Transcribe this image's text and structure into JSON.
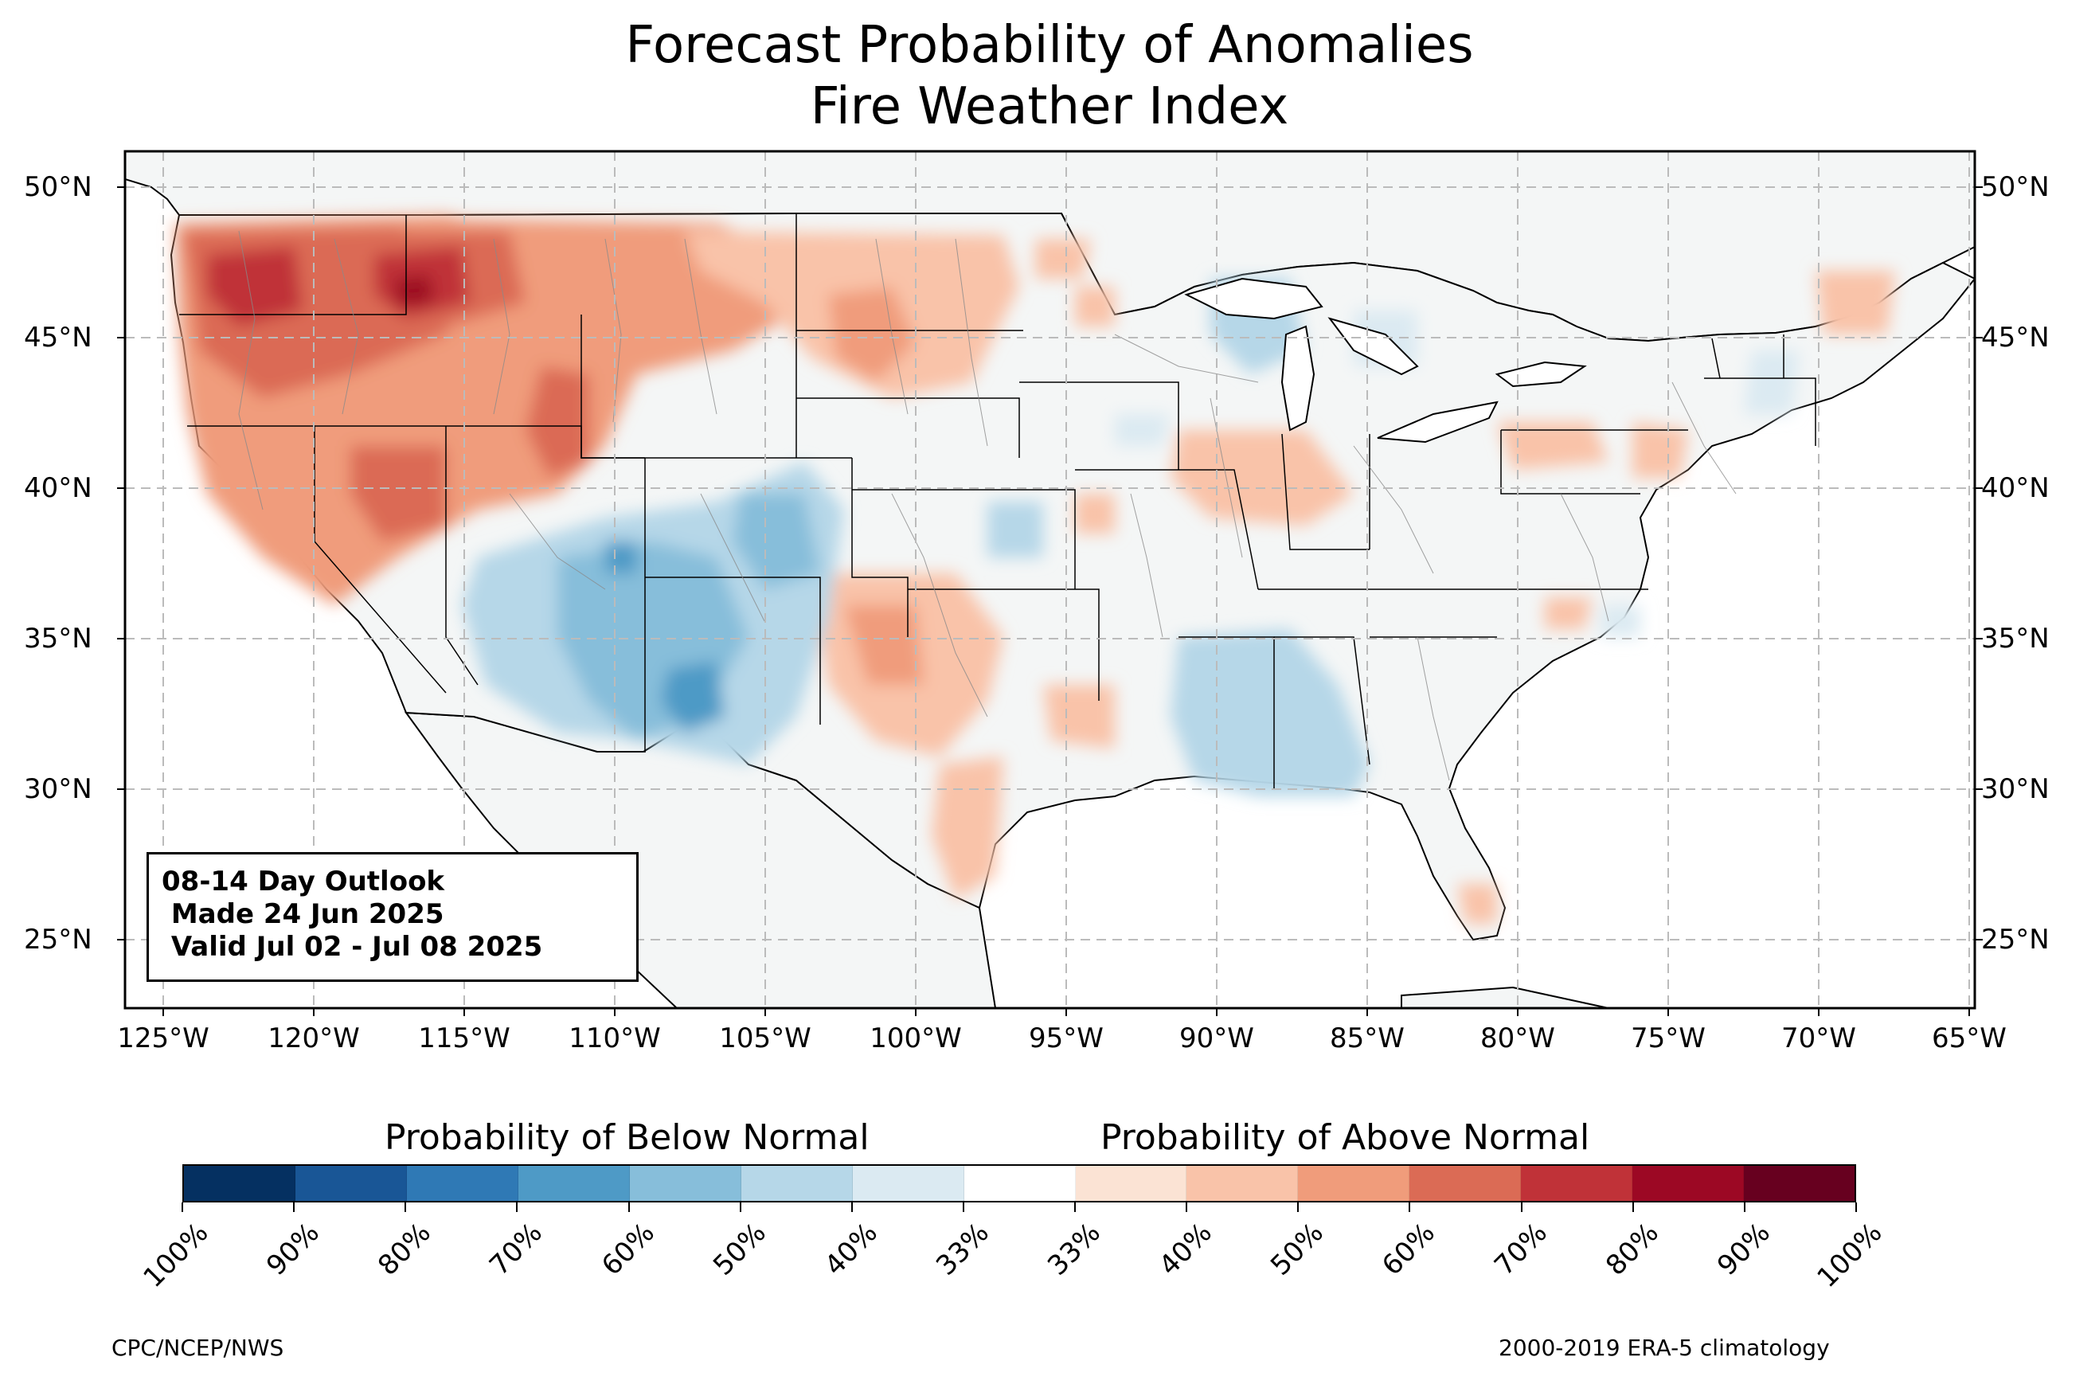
{
  "title": {
    "line1": "Forecast Probability of Anomalies",
    "line2": "Fire Weather Index"
  },
  "map": {
    "lat_ticks": [
      "50°N",
      "45°N",
      "40°N",
      "35°N",
      "30°N",
      "25°N"
    ],
    "lon_ticks": [
      "125°W",
      "120°W",
      "115°W",
      "110°W",
      "105°W",
      "100°W",
      "95°W",
      "90°W",
      "85°W",
      "80°W",
      "75°W",
      "70°W",
      "65°W"
    ],
    "extent": {
      "lon": [
        -126.3,
        -64.8
      ],
      "lat": [
        22.8,
        51.2
      ]
    },
    "gridlines": "dashed",
    "land_color": "#f4f6f6",
    "anomalies": [
      {
        "region": "Pacific Northwest",
        "category": "above",
        "peak_probability": "70%"
      },
      {
        "region": "Northern Rockies / Idaho-Montana",
        "category": "above",
        "peak_probability": "80%"
      },
      {
        "region": "Great Basin / Utah",
        "category": "above",
        "peak_probability": "70%"
      },
      {
        "region": "California",
        "category": "above",
        "peak_probability": "60%"
      },
      {
        "region": "Northern Plains",
        "category": "above",
        "peak_probability": "50%"
      },
      {
        "region": "Southern High Plains / Texas Panhandle",
        "category": "above",
        "peak_probability": "60%"
      },
      {
        "region": "Ohio Valley",
        "category": "above",
        "peak_probability": "50%"
      },
      {
        "region": "Southwest / Four Corners / New Mexico",
        "category": "below",
        "peak_probability": "70%"
      },
      {
        "region": "Lower Mississippi Valley",
        "category": "below",
        "peak_probability": "50%"
      },
      {
        "region": "Upper Midwest / Wisconsin",
        "category": "below",
        "peak_probability": "50%"
      }
    ]
  },
  "outlook": {
    "line1": "08-14 Day Outlook",
    "line2": " Made 24 Jun 2025",
    "line3": " Valid Jul 02 - Jul 08 2025"
  },
  "legend": {
    "below_label": "Probability of Below Normal",
    "above_label": "Probability of Above Normal",
    "tick_labels": [
      "100%",
      "90%",
      "80%",
      "70%",
      "60%",
      "50%",
      "40%",
      "33%",
      "33%",
      "40%",
      "50%",
      "60%",
      "70%",
      "80%",
      "90%",
      "100%"
    ],
    "colors": [
      "#053061",
      "#195696",
      "#2f79b5",
      "#4e9ac6",
      "#87beda",
      "#b6d7e8",
      "#dbeaf2",
      "#ffffff",
      "#fbe3d4",
      "#f9c3a9",
      "#f09c7b",
      "#db6b55",
      "#c03238",
      "#9c0824",
      "#67001f"
    ]
  },
  "footer": {
    "left": "CPC/NCEP/NWS",
    "right": "2000-2019 ERA-5 climatology"
  }
}
